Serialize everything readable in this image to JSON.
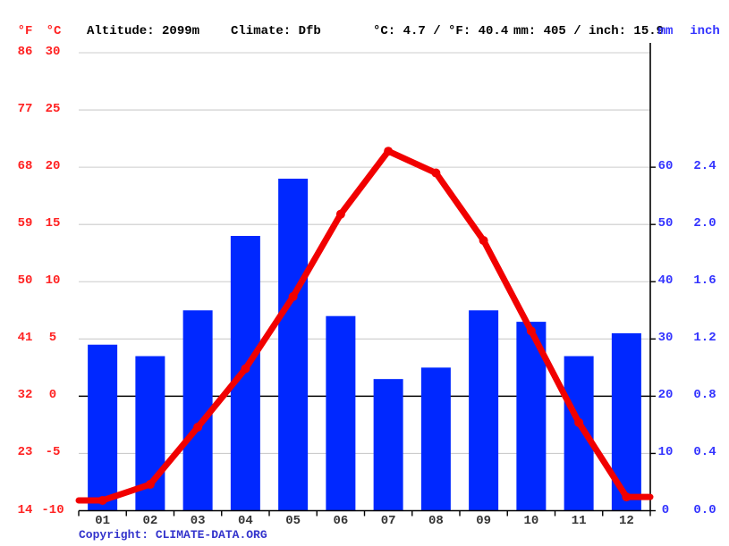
{
  "header": {
    "unit_f": "°F",
    "unit_c": "°C",
    "altitude": "Altitude: 2099m",
    "climate": "Climate: Dfb",
    "avg_temp": "°C: 4.7 / °F: 40.4",
    "precip_total": "mm: 405 / inch: 15.9",
    "unit_mm": "mm",
    "unit_inch": "inch"
  },
  "copyright": {
    "label": "Copyright: ",
    "link": "CLIMATE-DATA.ORG"
  },
  "colors": {
    "bar": "#0028ff",
    "line": "#f10000",
    "left_labels": "#ff2222",
    "right_labels": "#3333ff",
    "month_labels": "#333333",
    "gridline": "#cccccc",
    "axis": "#000000",
    "copyright": "#3333cc"
  },
  "chart_data": {
    "type": "bar",
    "subtype": "climate bar+line combo",
    "categories": [
      "01",
      "02",
      "03",
      "04",
      "05",
      "06",
      "07",
      "08",
      "09",
      "10",
      "11",
      "12"
    ],
    "series": [
      {
        "name": "precipitation",
        "type": "bar",
        "unit": "mm",
        "values": [
          29,
          27,
          35,
          48,
          58,
          34,
          23,
          25,
          35,
          33,
          27,
          31
        ]
      },
      {
        "name": "temperature",
        "type": "line",
        "unit": "°C",
        "values": [
          -9.1,
          -7.7,
          -2.7,
          2.4,
          8.7,
          15.9,
          21.4,
          19.5,
          13.6,
          5.7,
          -2.3,
          -8.8
        ]
      }
    ],
    "left_axis": {
      "f_ticks": [
        "86",
        "77",
        "68",
        "59",
        "50",
        "41",
        "32",
        "23",
        "14"
      ],
      "c_ticks": [
        30,
        25,
        20,
        15,
        10,
        5,
        0,
        -5,
        -10
      ],
      "range_c": [
        -10,
        30
      ]
    },
    "right_axis": {
      "mm_ticks": [
        60,
        50,
        40,
        30,
        20,
        10,
        0
      ],
      "inch_ticks": [
        "2.4",
        "2.0",
        "1.6",
        "1.2",
        "0.8",
        "0.4",
        "0.0"
      ],
      "range_mm": [
        0,
        80
      ]
    },
    "grid": true,
    "legend": "none",
    "annotations": {
      "altitude_m": 2099,
      "climate_classification": "Dfb",
      "annual_mean_c": 4.7,
      "annual_mean_f": 40.4,
      "annual_precip_mm": 405,
      "annual_precip_inch": 15.9
    }
  }
}
